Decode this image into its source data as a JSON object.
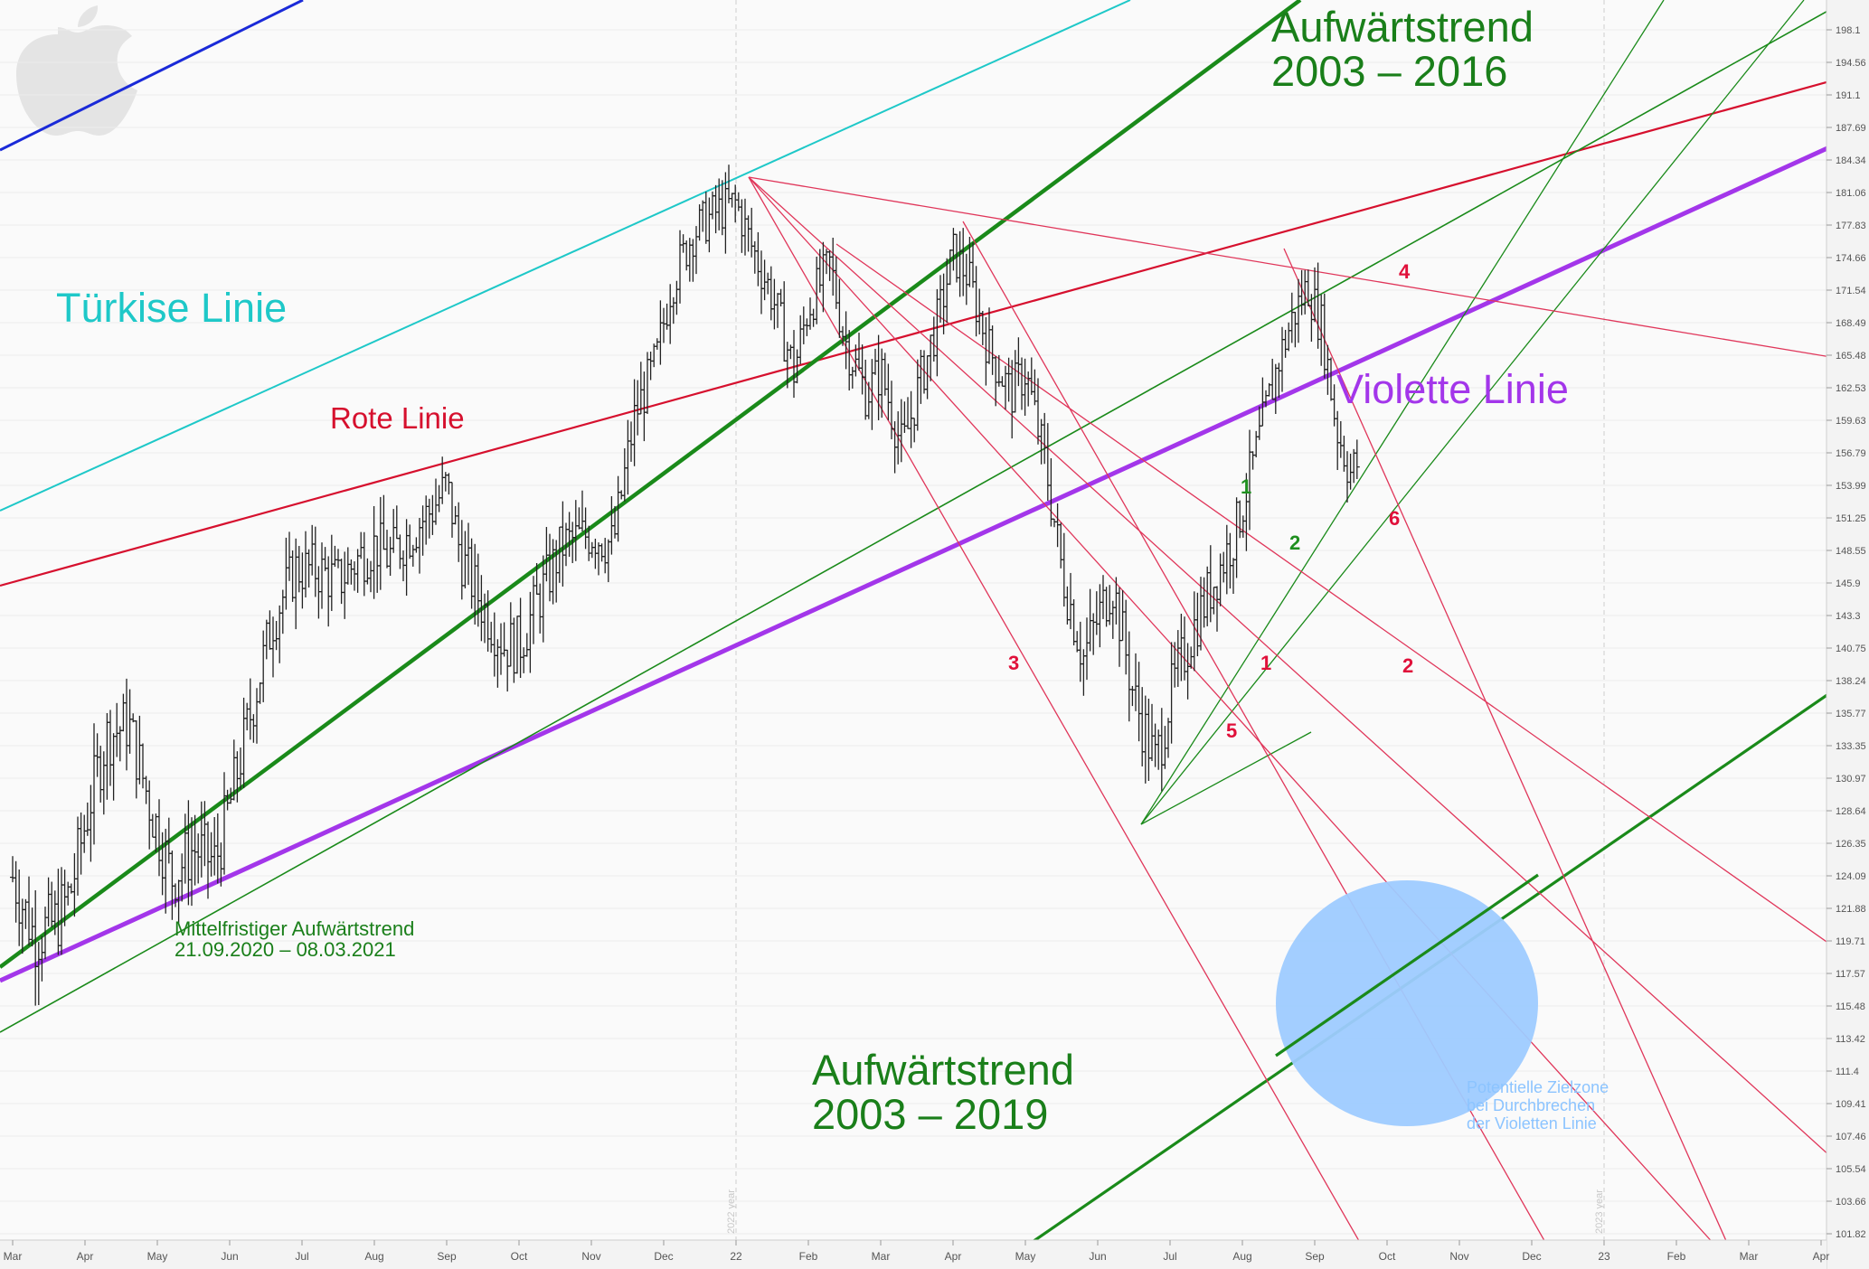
{
  "chart_data": {
    "type": "bar",
    "x_ticks": [
      "Mar",
      "Apr",
      "May",
      "Jun",
      "Jul",
      "Aug",
      "Sep",
      "Oct",
      "Nov",
      "Dec",
      "22",
      "Feb",
      "Mar",
      "Apr",
      "May",
      "Jun",
      "Jul",
      "Aug",
      "Sep",
      "Oct",
      "Nov",
      "Dec",
      "23",
      "Feb",
      "Mar",
      "Apr"
    ],
    "y_ticks": [
      "198.1",
      "194.56",
      "191.1",
      "187.69",
      "184.34",
      "181.06",
      "177.83",
      "174.66",
      "171.54",
      "168.49",
      "165.48",
      "162.53",
      "159.63",
      "156.79",
      "153.99",
      "151.25",
      "148.55",
      "145.9",
      "143.3",
      "140.75",
      "138.24",
      "135.77",
      "133.35",
      "130.97",
      "128.64",
      "126.35",
      "124.09",
      "121.88",
      "119.71",
      "117.57",
      "115.48",
      "113.42",
      "111.4",
      "109.41",
      "107.46",
      "105.54",
      "103.66",
      "101.82"
    ],
    "year_markers": [
      "2022 year",
      "2023 year"
    ],
    "ohlc_path": [
      {
        "m": 0.0,
        "p": 124
      },
      {
        "m": 0.3,
        "p": 120
      },
      {
        "m": 0.6,
        "p": 121
      },
      {
        "m": 0.8,
        "p": 123
      },
      {
        "m": 1.1,
        "p": 130
      },
      {
        "m": 1.3,
        "p": 134
      },
      {
        "m": 1.6,
        "p": 135
      },
      {
        "m": 1.9,
        "p": 129
      },
      {
        "m": 2.2,
        "p": 124
      },
      {
        "m": 2.5,
        "p": 126
      },
      {
        "m": 2.8,
        "p": 125
      },
      {
        "m": 3.0,
        "p": 129
      },
      {
        "m": 3.3,
        "p": 136
      },
      {
        "m": 3.6,
        "p": 143
      },
      {
        "m": 3.9,
        "p": 147
      },
      {
        "m": 4.2,
        "p": 147
      },
      {
        "m": 4.5,
        "p": 146
      },
      {
        "m": 4.8,
        "p": 148
      },
      {
        "m": 5.0,
        "p": 149
      },
      {
        "m": 5.2,
        "p": 148
      },
      {
        "m": 5.5,
        "p": 150
      },
      {
        "m": 5.8,
        "p": 152
      },
      {
        "m": 6.0,
        "p": 154
      },
      {
        "m": 6.2,
        "p": 148
      },
      {
        "m": 6.5,
        "p": 144
      },
      {
        "m": 6.8,
        "p": 141
      },
      {
        "m": 7.0,
        "p": 141
      },
      {
        "m": 7.3,
        "p": 145
      },
      {
        "m": 7.6,
        "p": 149
      },
      {
        "m": 8.0,
        "p": 150
      },
      {
        "m": 8.3,
        "p": 149
      },
      {
        "m": 8.6,
        "p": 160
      },
      {
        "m": 8.9,
        "p": 165
      },
      {
        "m": 9.1,
        "p": 172
      },
      {
        "m": 9.4,
        "p": 177
      },
      {
        "m": 9.7,
        "p": 179
      },
      {
        "m": 10.0,
        "p": 180
      },
      {
        "m": 10.2,
        "p": 176
      },
      {
        "m": 10.5,
        "p": 171
      },
      {
        "m": 10.8,
        "p": 164
      },
      {
        "m": 11.0,
        "p": 170
      },
      {
        "m": 11.3,
        "p": 174
      },
      {
        "m": 11.5,
        "p": 167
      },
      {
        "m": 11.8,
        "p": 162
      },
      {
        "m": 12.0,
        "p": 164
      },
      {
        "m": 12.3,
        "p": 157
      },
      {
        "m": 12.5,
        "p": 162
      },
      {
        "m": 12.8,
        "p": 169
      },
      {
        "m": 13.0,
        "p": 175
      },
      {
        "m": 13.2,
        "p": 173
      },
      {
        "m": 13.5,
        "p": 166
      },
      {
        "m": 13.8,
        "p": 162
      },
      {
        "m": 14.0,
        "p": 164
      },
      {
        "m": 14.3,
        "p": 155
      },
      {
        "m": 14.5,
        "p": 147
      },
      {
        "m": 14.8,
        "p": 140
      },
      {
        "m": 15.0,
        "p": 143
      },
      {
        "m": 15.2,
        "p": 146
      },
      {
        "m": 15.5,
        "p": 137
      },
      {
        "m": 15.8,
        "p": 132
      },
      {
        "m": 16.0,
        "p": 137
      },
      {
        "m": 16.3,
        "p": 142
      },
      {
        "m": 16.6,
        "p": 146
      },
      {
        "m": 16.9,
        "p": 150
      },
      {
        "m": 17.2,
        "p": 157
      },
      {
        "m": 17.5,
        "p": 165
      },
      {
        "m": 17.7,
        "p": 169
      },
      {
        "m": 17.9,
        "p": 172
      },
      {
        "m": 18.1,
        "p": 168
      },
      {
        "m": 18.3,
        "p": 159
      },
      {
        "m": 18.5,
        "p": 155
      },
      {
        "m": 18.6,
        "p": 156
      }
    ]
  },
  "labels": {
    "tuerkise": "Türkise Linie",
    "rote": "Rote Linie",
    "violette": "Violette Linie",
    "aufwaerts_2016_l1": "Aufwärtstrend",
    "aufwaerts_2016_l2": "2003 – 2016",
    "aufwaerts_2019_l1": "Aufwärtstrend",
    "aufwaerts_2019_l2": "2003 – 2019",
    "mittelfristig_l1": "Mittelfristiger Aufwärtstrend",
    "mittelfristig_l2": "21.09.2020 – 08.03.2021",
    "zone_l1": "Potentielle Zielzone",
    "zone_l2": "bei Durchbrechen",
    "zone_l3": "der Violetten Linie"
  },
  "line_numbers": {
    "red": [
      "3",
      "1",
      "5",
      "2",
      "4",
      "6"
    ],
    "green": [
      "1",
      "2"
    ]
  },
  "colors": {
    "turquoise": "#1ec8c8",
    "red": "#d6102e",
    "red_fan": "#e0365a",
    "violet": "#a336ea",
    "green": "#1a8a1a",
    "blue": "#1a2ad8",
    "zone": "#9ecbff",
    "bars": "#222222",
    "apple_logo": "#e6e6e6"
  }
}
